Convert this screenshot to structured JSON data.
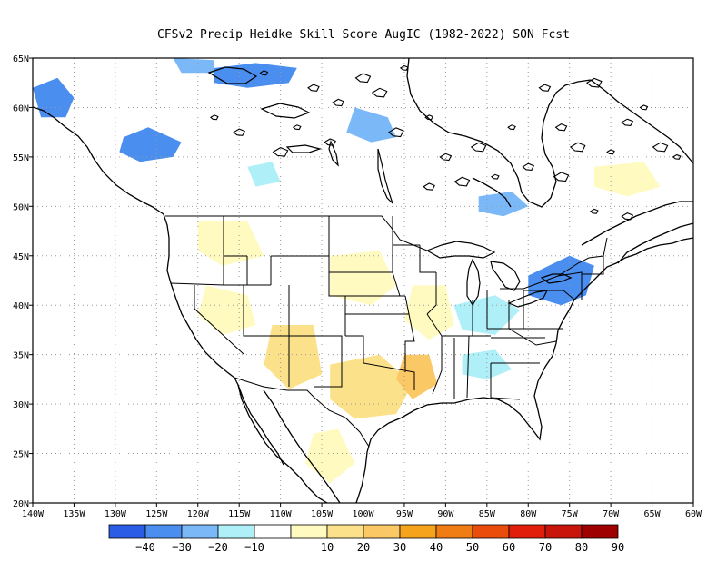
{
  "title": "CFSv2 Precip Heidke Skill Score AugIC (1982-2022) SON Fcst",
  "map": {
    "lat_labels": [
      "65N",
      "60N",
      "55N",
      "50N",
      "45N",
      "40N",
      "35N",
      "30N",
      "25N",
      "20N"
    ],
    "lon_labels": [
      "140W",
      "135W",
      "130W",
      "125W",
      "120W",
      "115W",
      "110W",
      "105W",
      "100W",
      "95W",
      "90W",
      "85W",
      "80W",
      "75W",
      "70W",
      "65W",
      "60W"
    ],
    "extent": {
      "lon": [
        -140,
        -60
      ],
      "lat": [
        20,
        65
      ]
    },
    "grid": "dotted"
  },
  "colorbar": {
    "colors": [
      "#2b5ce6",
      "#4a8ef0",
      "#7ab8f7",
      "#aeeff8",
      "#ffffff",
      "#fffac0",
      "#fbe18a",
      "#fac864",
      "#f6a31c",
      "#f07d14",
      "#ea4c0c",
      "#e01e0a",
      "#c8140a",
      "#9e0000"
    ],
    "labels": [
      "−40",
      "−30",
      "−20",
      "−10",
      "10",
      "20",
      "30",
      "40",
      "50",
      "60",
      "70",
      "80",
      "90"
    ]
  },
  "skill_patches": [
    {
      "region": "alaska-panhandle",
      "level": "-30"
    },
    {
      "region": "bc-coast",
      "level": "-30"
    },
    {
      "region": "yukon",
      "level": "-30"
    },
    {
      "region": "northwest-territories",
      "level": "-20"
    },
    {
      "region": "hudson-west",
      "level": "-20"
    },
    {
      "region": "alberta",
      "level": "-10"
    },
    {
      "region": "great-lakes",
      "level": "-20"
    },
    {
      "region": "new-york",
      "level": "-30"
    },
    {
      "region": "ohio-valley",
      "level": "-10"
    },
    {
      "region": "southeast",
      "level": "-10"
    },
    {
      "region": "idaho",
      "level": "20"
    },
    {
      "region": "great-basin",
      "level": "20"
    },
    {
      "region": "four-corners",
      "level": "30"
    },
    {
      "region": "texas",
      "level": "30"
    },
    {
      "region": "arkansas",
      "level": "40"
    },
    {
      "region": "plains",
      "level": "20"
    },
    {
      "region": "mexico",
      "level": "20"
    },
    {
      "region": "missouri",
      "level": "20"
    },
    {
      "region": "quebec",
      "level": "20"
    }
  ]
}
